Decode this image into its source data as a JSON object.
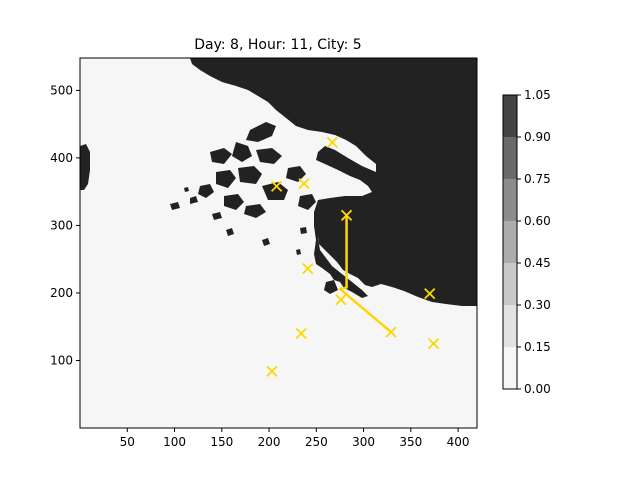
{
  "chart_data": {
    "type": "map",
    "title": "Day: 8, Hour: 11, City: 5",
    "xlim": [
      0,
      420
    ],
    "ylim": [
      0,
      548
    ],
    "x_ticks": [
      50,
      100,
      150,
      200,
      250,
      300,
      350,
      400
    ],
    "y_ticks": [
      100,
      200,
      300,
      400,
      500
    ],
    "grid": false,
    "colors": {
      "land": "#222222",
      "background": "#f6f6f6",
      "marker": "#ffd700",
      "route": "#ffd700"
    },
    "cities": [
      {
        "x": 267,
        "y": 423
      },
      {
        "x": 208,
        "y": 358
      },
      {
        "x": 237,
        "y": 362
      },
      {
        "x": 282,
        "y": 315
      },
      {
        "x": 241,
        "y": 236
      },
      {
        "x": 370,
        "y": 199
      },
      {
        "x": 276,
        "y": 190
      },
      {
        "x": 234,
        "y": 140
      },
      {
        "x": 329,
        "y": 142
      },
      {
        "x": 374,
        "y": 125
      },
      {
        "x": 203,
        "y": 84
      }
    ],
    "route": [
      {
        "x": 282,
        "y": 315
      },
      {
        "x": 282,
        "y": 208
      },
      {
        "x": 275,
        "y": 206
      },
      {
        "x": 329,
        "y": 142
      }
    ],
    "colorbar": {
      "ticks": [
        "0.00",
        "0.15",
        "0.30",
        "0.45",
        "0.60",
        "0.75",
        "0.90",
        "1.05"
      ],
      "levels": [
        "#f6f6f6",
        "#e2e2e2",
        "#c8c8c8",
        "#acacac",
        "#8c8c8c",
        "#6a6a6a",
        "#444444"
      ],
      "top_color": "#222222"
    }
  }
}
